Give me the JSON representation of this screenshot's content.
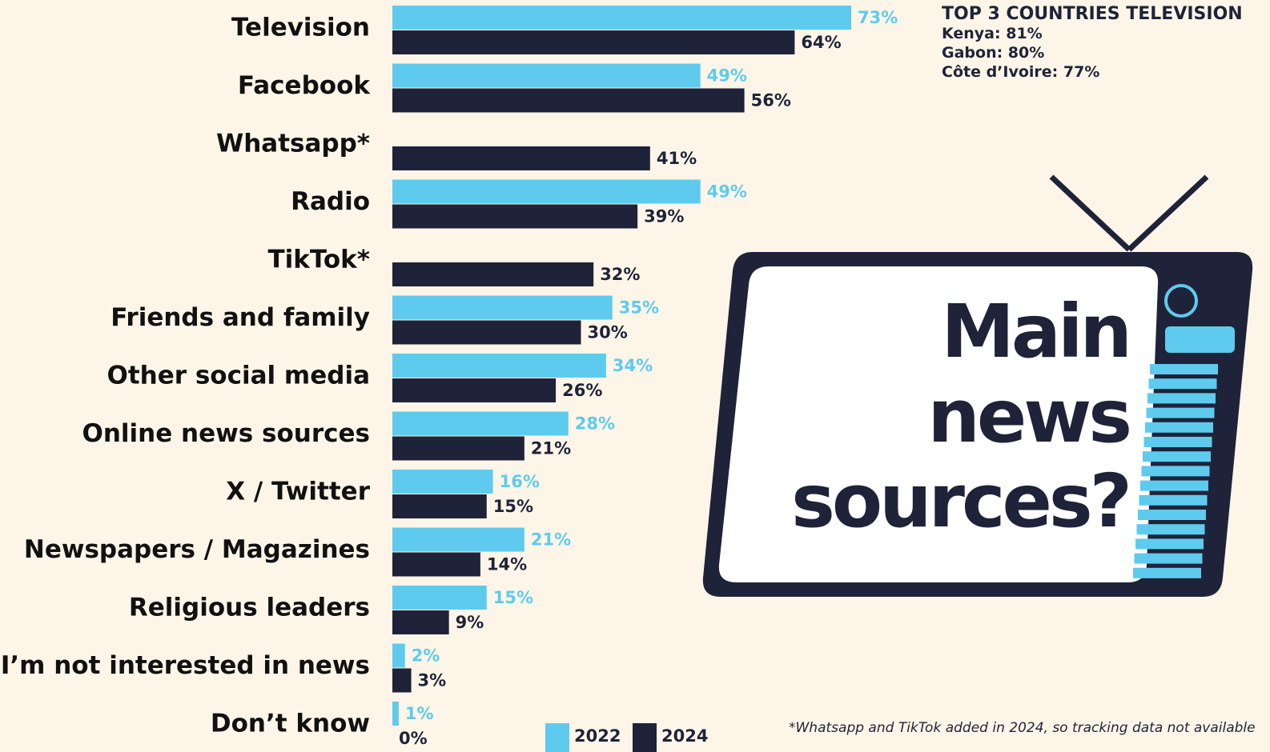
{
  "chart_data": {
    "type": "bar",
    "orientation": "horizontal",
    "title": "Main news sources?",
    "categories": [
      "Television",
      "Facebook",
      "Whatsapp*",
      "Radio",
      "TikTok*",
      "Friends and family",
      "Other social media",
      "Online news sources",
      "X / Twitter",
      "Newspapers / Magazines",
      "Religious leaders",
      "I’m not interested in news",
      "Don’t know"
    ],
    "series": [
      {
        "name": "2022",
        "color": "#5ecbee",
        "values": [
          73,
          49,
          null,
          49,
          null,
          35,
          34,
          28,
          16,
          21,
          15,
          2,
          1
        ],
        "value_labels": [
          "73%",
          "49%",
          null,
          "49%",
          null,
          "35%",
          "34%",
          "28%",
          "16%",
          "21%",
          "15%",
          "2%",
          "1%"
        ]
      },
      {
        "name": "2024",
        "color": "#1f2339",
        "values": [
          64,
          56,
          41,
          39,
          32,
          30,
          26,
          21,
          15,
          14,
          9,
          3,
          0
        ],
        "value_labels": [
          "64%",
          "56%",
          "41%",
          "39%",
          "32%",
          "30%",
          "26%",
          "21%",
          "15%",
          "14%",
          "9%",
          "3%",
          "0%"
        ]
      }
    ],
    "annotations": [
      "TOP 3 COUNTRIES TELEVISION",
      "Kenya: 81%",
      "Gabon: 80%",
      "Côte d’Ivoire: 77%"
    ],
    "footnote": "*Whatsapp and TikTok added in 2024, so tracking data not available"
  }
}
